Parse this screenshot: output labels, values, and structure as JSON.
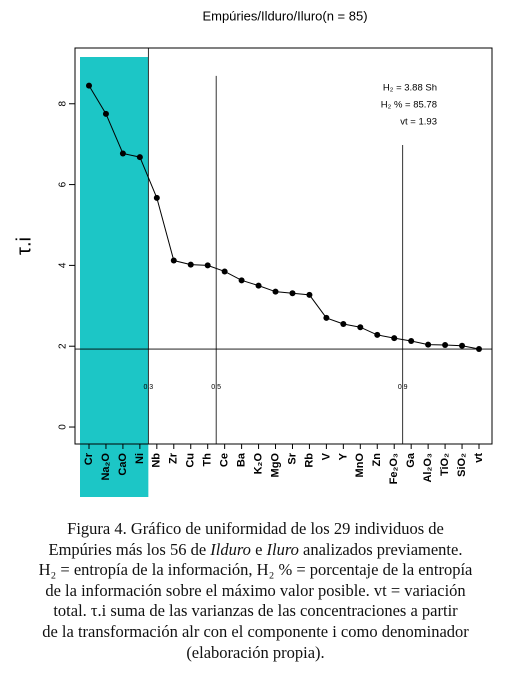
{
  "chart_data": {
    "type": "line",
    "title": "Empúries/Ilduro/Iluro(n = 85)",
    "ylabel": "τ.i",
    "categories": [
      "Cr",
      "Na₂O",
      "CaO",
      "Ni",
      "Nb",
      "Zr",
      "Cu",
      "Th",
      "Ce",
      "Ba",
      "K₂O",
      "MgO",
      "Sr",
      "Rb",
      "V",
      "Y",
      "MnO",
      "Zn",
      "Fe₂O₃",
      "Ga",
      "Al₂O₃",
      "TiO₂",
      "SiO₂",
      "vt"
    ],
    "values": [
      8.45,
      7.75,
      6.77,
      6.68,
      5.67,
      4.12,
      4.02,
      4.0,
      3.85,
      3.63,
      3.5,
      3.35,
      3.31,
      3.27,
      2.7,
      2.55,
      2.47,
      2.28,
      2.2,
      2.13,
      2.04,
      2.03,
      2.01,
      1.93
    ],
    "color": "#000000",
    "highlight_color": "#1cc6c6",
    "ylim": [
      -0.42,
      9.38
    ],
    "yticks": [
      0,
      2,
      4,
      6,
      8
    ],
    "hline": 1.93,
    "cutoffs": [
      {
        "value": 0.3,
        "label": "0.3",
        "at": 3.5,
        "top": 9.38
      },
      {
        "value": 0.5,
        "label": "0.5",
        "at": 7.5,
        "top": 8.69
      },
      {
        "value": 0.9,
        "label": "0.9",
        "at": 18.5,
        "top": 6.98
      }
    ],
    "annotations": [
      "H₂ = 3.88 Sh",
      "H₂ % = 85.78",
      "vt = 1.93"
    ]
  },
  "caption": {
    "lines": [
      [
        {
          "text": "Figura 4. Gráfico de uniformidad de los 29 individuos de",
          "style": "normal"
        }
      ],
      [
        {
          "text": "Empúries más los 56 de ",
          "style": "normal"
        },
        {
          "text": "Ilduro",
          "style": "italic"
        },
        {
          "text": " e ",
          "style": "normal"
        },
        {
          "text": "Iluro",
          "style": "italic"
        },
        {
          "text": " analizados previamente.",
          "style": "normal"
        }
      ],
      [
        {
          "text": "H₂ = entropía de la información, H₂ % = porcentaje de la entropía",
          "style": "normal"
        }
      ],
      [
        {
          "text": "de la información sobre el máximo valor posible. vt = variación",
          "style": "normal"
        }
      ],
      [
        {
          "text": "total. τ.i suma de las varianzas de las concentraciones a partir",
          "style": "normal"
        }
      ],
      [
        {
          "text": "de la transformación alr con el componente i como denominador",
          "style": "normal"
        }
      ],
      [
        {
          "text": "(elaboración propia).",
          "style": "normal"
        }
      ]
    ]
  }
}
